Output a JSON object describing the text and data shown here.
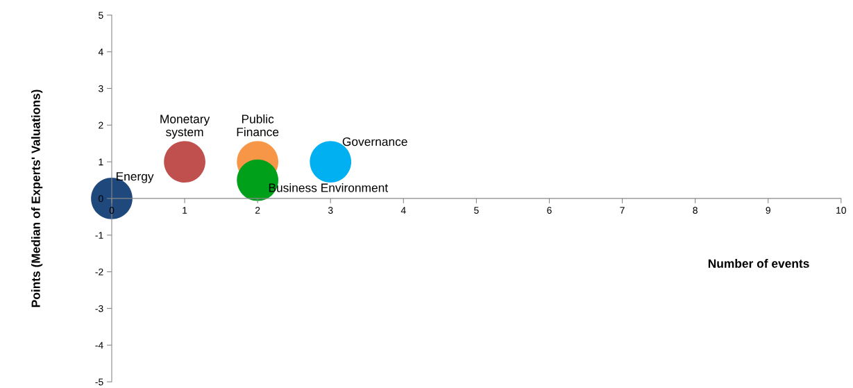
{
  "chart_data": {
    "type": "bubble",
    "xlabel": "Number of events",
    "ylabel": "Points (Median of Experts' Valuations)",
    "xlim": [
      0,
      10
    ],
    "ylim": [
      -5,
      5
    ],
    "xticks": [
      0,
      1,
      2,
      3,
      4,
      5,
      6,
      7,
      8,
      9,
      10
    ],
    "yticks": [
      -5,
      -4,
      -3,
      -2,
      -1,
      0,
      1,
      2,
      3,
      4,
      5
    ],
    "grid": false,
    "legend": false,
    "series": [
      {
        "name": "Energy",
        "color": "#1f497d",
        "x": [
          0
        ],
        "values": [
          0
        ],
        "sizes": [
          1
        ]
      },
      {
        "name": "Monetary system",
        "color": "#c0504d",
        "x": [
          1
        ],
        "values": [
          1
        ],
        "sizes": [
          1
        ]
      },
      {
        "name": "Public Finance",
        "color": "#f79646",
        "x": [
          2
        ],
        "values": [
          1
        ],
        "sizes": [
          1
        ]
      },
      {
        "name": "Business Environment",
        "color": "#00a01a",
        "x": [
          2
        ],
        "values": [
          0.5
        ],
        "sizes": [
          1
        ]
      },
      {
        "name": "Governance",
        "color": "#00b0f0",
        "x": [
          3
        ],
        "values": [
          1
        ],
        "sizes": [
          1
        ]
      }
    ]
  }
}
